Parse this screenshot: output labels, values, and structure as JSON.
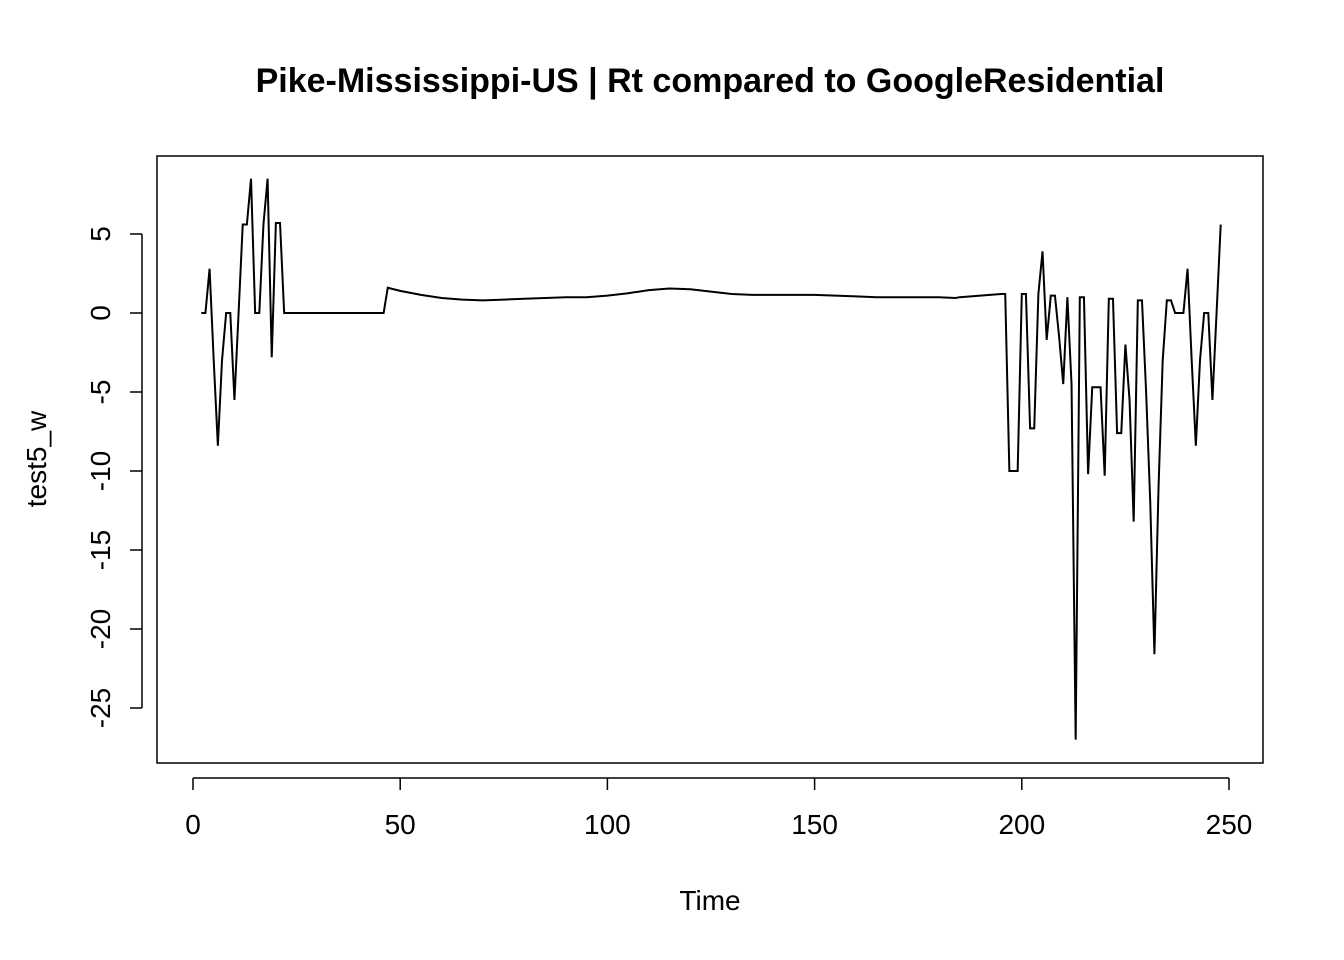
{
  "chart_data": {
    "type": "line",
    "title": "Pike-Mississippi-US | Rt compared to GoogleResidential",
    "xlabel": "Time",
    "ylabel": "test5_w",
    "xlim": [
      0,
      250
    ],
    "ylim": [
      -27,
      8.5
    ],
    "xticks": [
      0,
      50,
      100,
      150,
      200,
      250
    ],
    "yticks": [
      5,
      0,
      -5,
      -10,
      -15,
      -20,
      -25
    ],
    "xtick_labels": [
      "0",
      "50",
      "100",
      "150",
      "200",
      "250"
    ],
    "ytick_labels": [
      "5",
      "0",
      "-5",
      "-10",
      "-15",
      "-20",
      "-25"
    ],
    "grid": false,
    "series": [
      {
        "color": "#000000",
        "x": [
          2,
          3,
          4,
          5,
          6,
          7,
          8,
          9,
          10,
          11,
          12,
          13,
          14,
          15,
          16,
          17,
          18,
          19,
          20,
          21,
          22,
          23,
          25,
          30,
          35,
          40,
          45,
          46,
          47,
          50,
          55,
          60,
          65,
          70,
          75,
          80,
          85,
          90,
          95,
          100,
          105,
          110,
          115,
          120,
          125,
          130,
          135,
          140,
          145,
          150,
          155,
          160,
          165,
          170,
          175,
          180,
          184,
          185,
          190,
          195,
          196,
          197,
          198,
          199,
          200,
          201,
          202,
          203,
          204,
          205,
          206,
          207,
          208,
          209,
          210,
          211,
          212,
          213,
          214,
          215,
          216,
          217,
          218,
          219,
          220,
          221,
          222,
          223,
          224,
          225,
          226,
          227,
          228,
          229,
          230,
          231,
          232,
          233,
          234,
          235,
          236,
          237,
          238,
          239,
          240,
          241,
          242,
          243,
          244,
          245,
          246,
          247,
          248
        ],
        "y": [
          0,
          0,
          2.8,
          -3,
          -8.4,
          -3,
          0,
          0,
          -5.5,
          0,
          5.6,
          5.6,
          8.5,
          0,
          0,
          5.6,
          8.5,
          -2.8,
          5.7,
          5.7,
          0,
          0,
          0,
          0,
          0,
          0,
          0,
          0,
          1.6,
          1.4,
          1.15,
          0.95,
          0.85,
          0.8,
          0.85,
          0.9,
          0.95,
          1.0,
          1.0,
          1.1,
          1.25,
          1.45,
          1.55,
          1.5,
          1.35,
          1.2,
          1.15,
          1.15,
          1.15,
          1.15,
          1.1,
          1.05,
          1.0,
          1.0,
          1.0,
          1.0,
          0.95,
          1.0,
          1.1,
          1.2,
          1.2,
          -10,
          -10,
          -10,
          1.2,
          1.2,
          -7.3,
          -7.3,
          1.2,
          3.9,
          -1.7,
          1.1,
          1.1,
          -1.5,
          -4.5,
          1.0,
          -4.5,
          -27,
          1.0,
          1.0,
          -10.2,
          -4.7,
          -4.7,
          -4.7,
          -10.3,
          0.9,
          0.9,
          -7.6,
          -7.6,
          -2.0,
          -5.5,
          -13.2,
          0.8,
          0.8,
          -5,
          -12,
          -21.6,
          -11,
          -3,
          0.8,
          0.8,
          0,
          0,
          0,
          2.8,
          -3,
          -8.4,
          -3,
          0,
          0,
          -5.5,
          0,
          5.6
        ]
      }
    ]
  }
}
